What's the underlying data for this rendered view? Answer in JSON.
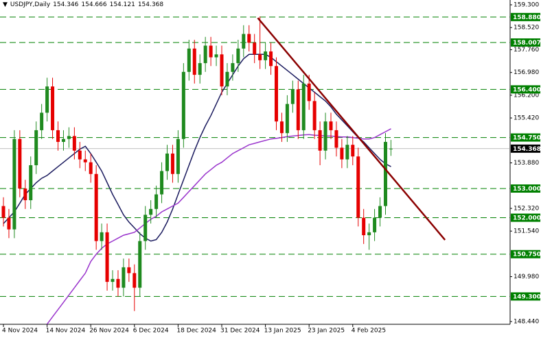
{
  "chart_data": {
    "type": "candlestick",
    "header": {
      "symbol": "USDJPY,Daily"
    },
    "categories": [
      "4 Nov 2024",
      null,
      null,
      null,
      null,
      null,
      null,
      null,
      "14 Nov 2024",
      null,
      null,
      null,
      null,
      null,
      null,
      null,
      "26 Nov 2024",
      null,
      null,
      null,
      null,
      null,
      null,
      null,
      "6 Dec 2024",
      null,
      null,
      null,
      null,
      null,
      null,
      null,
      "18 Dec 2024",
      null,
      null,
      null,
      null,
      null,
      null,
      null,
      "31 Dec 2024",
      null,
      null,
      null,
      null,
      null,
      null,
      null,
      "13 Jan 2025",
      null,
      null,
      null,
      null,
      null,
      null,
      null,
      "23 Jan 2025",
      null,
      null,
      null,
      null,
      null,
      null,
      null,
      "4 Feb 2025",
      null,
      null,
      null,
      null,
      null,
      null,
      null
    ],
    "open": [
      152.4,
      152.0,
      151.6,
      154.7,
      153.0,
      152.6,
      153.8,
      155.0,
      155.6,
      156.5,
      155.0,
      154.6,
      154.7,
      154.8,
      154.3,
      154.0,
      153.9,
      153.5,
      151.2,
      151.5,
      149.8,
      149.9,
      149.6,
      150.3,
      150.1,
      149.6,
      151.2,
      152.1,
      152.3,
      152.8,
      153.6,
      154.2,
      153.5,
      154.7,
      157.0,
      157.8,
      156.9,
      157.3,
      157.9,
      157.5,
      157.6,
      156.5,
      157.0,
      157.3,
      157.8,
      158.3,
      158.0,
      157.6,
      157.4,
      157.7,
      157.2,
      155.3,
      154.9,
      155.9,
      156.4,
      155.0,
      156.6,
      156.0,
      155.0,
      154.3,
      155.3,
      155.0,
      154.4,
      154.0,
      154.5,
      154.1,
      152.0,
      151.4,
      151.5,
      152.0,
      152.4,
      154.346
    ],
    "high": [
      152.7,
      152.3,
      155.0,
      155.0,
      153.3,
      154.1,
      155.3,
      155.9,
      156.8,
      156.8,
      155.3,
      155.0,
      155.1,
      155.1,
      154.6,
      154.3,
      154.2,
      153.8,
      151.8,
      151.8,
      150.2,
      150.2,
      150.6,
      150.6,
      150.4,
      151.5,
      152.4,
      152.6,
      153.1,
      153.9,
      154.5,
      154.5,
      155.0,
      157.3,
      158.1,
      158.1,
      157.6,
      158.2,
      158.2,
      157.9,
      157.9,
      157.3,
      157.6,
      158.1,
      158.6,
      158.6,
      158.3,
      158.9,
      158.0,
      158.0,
      157.5,
      155.6,
      156.2,
      156.7,
      156.7,
      156.9,
      156.9,
      156.3,
      155.3,
      155.6,
      155.6,
      155.3,
      154.7,
      154.8,
      154.8,
      154.4,
      152.3,
      151.8,
      152.3,
      152.7,
      154.9,
      154.666
    ],
    "low": [
      151.7,
      151.3,
      151.3,
      152.7,
      152.3,
      152.3,
      153.5,
      154.7,
      155.3,
      154.7,
      154.3,
      154.3,
      154.4,
      154.0,
      153.7,
      153.6,
      153.2,
      150.9,
      150.9,
      149.5,
      149.5,
      149.3,
      149.3,
      149.8,
      148.8,
      149.3,
      150.9,
      151.8,
      152.0,
      152.5,
      153.3,
      153.2,
      153.2,
      154.4,
      156.7,
      156.6,
      156.6,
      157.0,
      157.2,
      157.2,
      156.2,
      156.2,
      156.7,
      157.0,
      157.5,
      157.7,
      157.3,
      157.1,
      157.1,
      156.9,
      155.0,
      154.6,
      154.6,
      155.6,
      154.7,
      154.7,
      155.7,
      154.7,
      153.8,
      154.0,
      154.7,
      154.1,
      153.7,
      153.7,
      153.8,
      151.7,
      151.1,
      150.9,
      151.2,
      151.7,
      152.1,
      154.121
    ],
    "close": [
      152.0,
      151.6,
      154.7,
      153.0,
      152.6,
      153.8,
      155.0,
      155.6,
      156.5,
      155.0,
      154.6,
      154.7,
      154.8,
      154.3,
      154.0,
      153.9,
      153.5,
      151.2,
      151.5,
      149.8,
      149.9,
      149.6,
      150.3,
      150.1,
      149.6,
      151.2,
      152.1,
      152.3,
      152.8,
      153.6,
      154.2,
      153.5,
      154.7,
      157.0,
      157.8,
      156.9,
      157.3,
      157.9,
      157.5,
      157.6,
      156.5,
      157.0,
      157.3,
      157.8,
      158.3,
      158.0,
      157.6,
      157.4,
      157.7,
      157.2,
      155.3,
      154.9,
      155.9,
      156.4,
      155.0,
      156.6,
      156.0,
      155.0,
      154.3,
      155.3,
      155.0,
      154.4,
      154.0,
      154.5,
      154.1,
      152.0,
      151.4,
      151.5,
      152.0,
      152.4,
      154.6,
      154.368
    ],
    "up_color": "#1f8a1f",
    "down_color": "#e60000",
    "lines": [
      {
        "color": "#1a1a5e",
        "values": [
          151.8,
          152.0,
          152.2,
          152.5,
          152.8,
          153.0,
          153.2,
          153.35,
          153.45,
          153.6,
          153.75,
          153.9,
          154.05,
          154.2,
          154.35,
          154.45,
          154.2,
          153.9,
          153.6,
          153.2,
          152.8,
          152.45,
          152.1,
          151.85,
          151.65,
          151.45,
          151.3,
          151.2,
          151.25,
          151.5,
          151.85,
          152.3,
          152.8,
          153.3,
          153.8,
          154.3,
          154.75,
          155.15,
          155.5,
          155.9,
          156.3,
          156.6,
          156.9,
          157.2,
          157.45,
          157.6,
          157.6,
          157.6,
          157.6,
          157.5,
          157.35,
          157.2,
          157.05,
          156.9,
          156.75,
          156.6,
          156.45,
          156.3,
          156.15,
          156.0,
          155.8,
          155.55,
          155.35,
          155.15,
          154.95,
          154.75,
          154.6,
          154.4,
          154.2,
          154.0,
          153.85,
          153.75
        ]
      },
      {
        "color": "#9933cc",
        "values": [
          null,
          null,
          null,
          null,
          null,
          null,
          null,
          null,
          148.35,
          148.6,
          148.85,
          149.1,
          149.35,
          149.6,
          149.85,
          150.1,
          150.5,
          150.75,
          150.95,
          151.1,
          151.2,
          151.3,
          151.4,
          151.45,
          151.5,
          151.65,
          151.8,
          151.95,
          152.05,
          152.2,
          152.3,
          152.4,
          152.5,
          152.7,
          152.9,
          153.1,
          153.3,
          153.5,
          153.65,
          153.8,
          153.9,
          154.05,
          154.2,
          154.3,
          154.4,
          154.5,
          154.55,
          154.6,
          154.65,
          154.7,
          154.72,
          154.75,
          154.78,
          154.8,
          154.82,
          154.84,
          154.85,
          154.83,
          154.82,
          154.8,
          154.8,
          154.78,
          154.77,
          154.77,
          154.75,
          154.72,
          154.7,
          154.7,
          154.75,
          154.85,
          154.95,
          155.05
        ]
      }
    ],
    "trendline": {
      "x": [
        46.6,
        80.9
      ],
      "y": [
        158.85,
        151.24
      ],
      "color": "#8b0000"
    },
    "levels": [
      {
        "value": 158.88,
        "label": "158.880"
      },
      158.007,
      {
        "value": 156.4,
        "label": "156.400"
      },
      {
        "value": 154.75,
        "label": "154.750"
      },
      {
        "value": 153,
        "label": "153.000"
      },
      {
        "value": 152,
        "label": "152.000"
      },
      {
        "value": 150.75,
        "label": "150.750"
      },
      {
        "value": 149.3,
        "label": "149.300"
      }
    ],
    "level_color": "#008000",
    "ylim": [
      148.44,
      159.3
    ],
    "yticks": [
      {
        "value": 159.3,
        "label": "159.300"
      },
      {
        "value": 158.52,
        "label": "158.520"
      },
      {
        "value": 157.76,
        "label": "157.760"
      },
      {
        "value": 156.98,
        "label": "156.980"
      },
      {
        "value": 156.2,
        "label": "156.200"
      },
      {
        "value": 155.42,
        "label": "155.420"
      },
      {
        "value": 153.88,
        "label": "153.880"
      },
      {
        "value": 152.32,
        "label": "152.320"
      },
      {
        "value": 151.54,
        "label": "151.540"
      },
      {
        "value": 149.98,
        "label": "149.980"
      },
      {
        "value": 148.44,
        "label": "148.440"
      }
    ]
  }
}
